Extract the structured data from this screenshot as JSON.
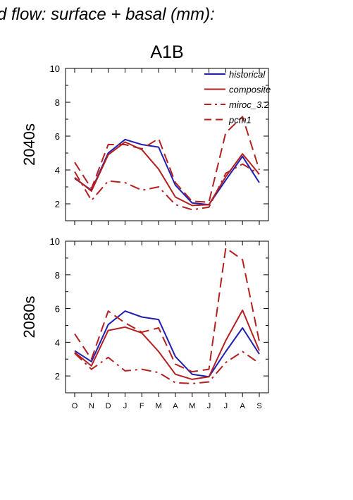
{
  "figure": {
    "title": "d flow: surface + basal (mm):",
    "scenario": "A1B"
  },
  "colors": {
    "historical": "#1f1fb4",
    "composite": "#b41f1f",
    "miroc_3.2": "#b41f1f",
    "pcm1": "#b41f1f"
  },
  "chart_data": [
    {
      "type": "line",
      "ylabel": "2040s",
      "categories": [
        "O",
        "N",
        "D",
        "J",
        "F",
        "M",
        "A",
        "M",
        "J",
        "J",
        "A",
        "S"
      ],
      "ylim": [
        1,
        10
      ],
      "yticks": [
        2,
        4,
        6,
        8,
        10
      ],
      "legend": "top-right",
      "grid": false,
      "series": [
        {
          "name": "historical",
          "style": "solid",
          "values": [
            3.5,
            2.8,
            5.0,
            5.8,
            5.5,
            5.35,
            3.1,
            2.05,
            1.95,
            3.4,
            4.8,
            3.25
          ]
        },
        {
          "name": "composite",
          "style": "solid",
          "values": [
            3.55,
            2.75,
            4.9,
            5.65,
            5.2,
            4.05,
            2.4,
            1.9,
            1.95,
            3.6,
            4.95,
            3.75
          ]
        },
        {
          "name": "miroc_3.2",
          "style": "dashdot",
          "values": [
            3.9,
            2.2,
            3.35,
            3.25,
            2.8,
            3.0,
            1.95,
            1.65,
            1.8,
            3.8,
            4.35,
            3.75
          ]
        },
        {
          "name": "pcm1",
          "style": "dashed",
          "values": [
            4.45,
            2.9,
            5.5,
            5.5,
            5.25,
            5.85,
            3.25,
            2.15,
            2.1,
            6.2,
            7.15,
            4.0
          ]
        }
      ]
    },
    {
      "type": "line",
      "ylabel": "2080s",
      "categories": [
        "O",
        "N",
        "D",
        "J",
        "F",
        "M",
        "A",
        "M",
        "J",
        "J",
        "A",
        "S"
      ],
      "ylim": [
        1,
        10
      ],
      "yticks": [
        2,
        4,
        6,
        8,
        10
      ],
      "grid": false,
      "series": [
        {
          "name": "historical",
          "style": "solid",
          "values": [
            3.5,
            2.85,
            5.05,
            5.85,
            5.5,
            5.35,
            3.15,
            2.1,
            1.95,
            3.45,
            4.85,
            3.3
          ]
        },
        {
          "name": "composite",
          "style": "solid",
          "values": [
            3.4,
            2.6,
            4.7,
            4.9,
            4.55,
            3.45,
            2.1,
            1.8,
            1.95,
            4.1,
            5.9,
            3.5
          ]
        },
        {
          "name": "miroc_3.2",
          "style": "dashdot",
          "values": [
            3.35,
            2.4,
            3.1,
            2.3,
            2.4,
            2.2,
            1.6,
            1.55,
            1.65,
            2.8,
            3.45,
            2.75
          ]
        },
        {
          "name": "pcm1",
          "style": "dashed",
          "values": [
            4.5,
            3.0,
            5.85,
            5.15,
            4.6,
            4.85,
            2.7,
            2.25,
            2.4,
            9.6,
            8.9,
            4.05
          ]
        }
      ]
    }
  ]
}
